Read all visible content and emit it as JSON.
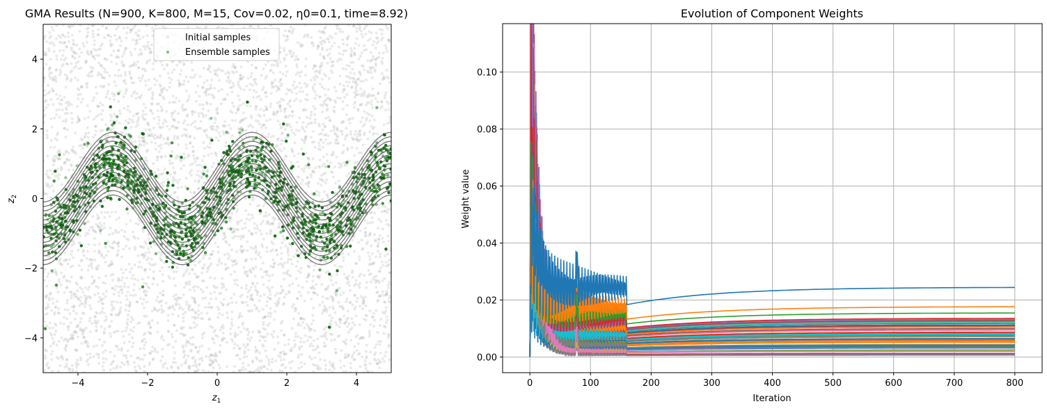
{
  "chart_data": [
    {
      "type": "scatter",
      "title": "GMA Results (N=900, K=800, M=15, Cov=0.02, η0=0.1, time=8.92)",
      "title_parts": {
        "prefix": "GMA Results (N=900, K=800, M=15, Cov=0.02, ",
        "eta": "η",
        "eta_sub": "0",
        "suffix": "=0.1, time=8.92)"
      },
      "xlabel": "z",
      "xlabel_sub": "1",
      "ylabel": "z",
      "ylabel_sub": "2",
      "xlim": [
        -5,
        5
      ],
      "ylim": [
        -5,
        5
      ],
      "xticks": [
        "−4",
        "−2",
        "0",
        "2",
        "4"
      ],
      "xtick_values": [
        -4,
        -2,
        0,
        2,
        4
      ],
      "yticks": [
        "−4",
        "−2",
        "0",
        "2",
        "4"
      ],
      "ytick_values": [
        -4,
        -2,
        0,
        2,
        4
      ],
      "grid": false,
      "legend": {
        "placement": "upper center",
        "entries": [
          "Initial samples",
          "Ensemble samples"
        ]
      },
      "series": [
        {
          "name": "Initial samples",
          "kind": "uniform scatter over [-5,5]x[-5,5]",
          "color": "#aaaaaa"
        },
        {
          "name": "Ensemble samples",
          "kind": "scatter concentrated along z2 ≈ sin(π z1 / 2)",
          "color": "#008000"
        }
      ],
      "contours": {
        "count": 15,
        "mean_curve": "z2 = sin(π z1 / 2)",
        "color": "#555555"
      }
    },
    {
      "type": "line",
      "title": "Evolution of Component Weights",
      "xlabel": "Iteration",
      "ylabel": "Weight value",
      "xlim": [
        -45,
        845
      ],
      "ylim": [
        -0.0055,
        0.117
      ],
      "xticks": [
        "0",
        "100",
        "200",
        "300",
        "400",
        "500",
        "600",
        "700",
        "800"
      ],
      "xtick_values": [
        0,
        100,
        200,
        300,
        400,
        500,
        600,
        700,
        800
      ],
      "yticks": [
        "0.00",
        "0.02",
        "0.04",
        "0.06",
        "0.08",
        "0.10"
      ],
      "ytick_values": [
        0,
        0.02,
        0.04,
        0.06,
        0.08,
        0.1
      ],
      "grid": true,
      "peak_weight": 0.112,
      "peak_iteration": 1,
      "final_weights_top": [
        0.0245,
        0.0177,
        0.0155,
        0.0136,
        0.0132,
        0.0128
      ],
      "final_weights_band": [
        0.0,
        0.0135
      ],
      "colors": [
        "#1f77b4",
        "#ff7f0e",
        "#2ca02c",
        "#d62728",
        "#9467bd",
        "#8c564b",
        "#e377c2",
        "#7f7f7f",
        "#bcbd22",
        "#17becf"
      ]
    }
  ]
}
